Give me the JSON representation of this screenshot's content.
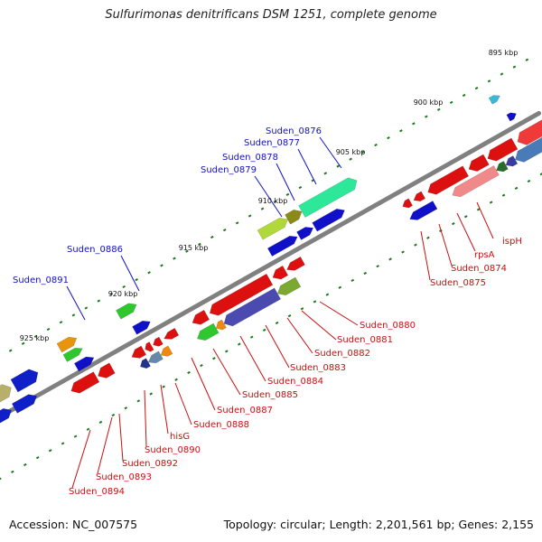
{
  "title": "Sulfurimonas denitrificans DSM 1251, complete genome",
  "footer": {
    "accession": "Accession: NC_007575",
    "summary": "Topology: circular; Length: 2,201,561 bp; Genes: 2,155"
  },
  "colors": {
    "backbone": "#808080",
    "forward_label": "#1010c8",
    "reverse_label": "#c81010",
    "leader_forward": "#1010c8",
    "leader_reverse": "#c81010",
    "tick": "#1a7a1a"
  },
  "scale_ticks": [
    "895 kbp",
    "900 kbp",
    "905 kbp",
    "910 kbp",
    "915 kbp",
    "920 kbp",
    "925 kbp"
  ],
  "forward_gene_labels": [
    "Suden_0876",
    "Suden_0877",
    "Suden_0878",
    "Suden_0879",
    "Suden_0886",
    "Suden_0891"
  ],
  "reverse_gene_labels": [
    "ispH",
    "rpsA",
    "Suden_0874",
    "Suden_0875",
    "Suden_0880",
    "Suden_0881",
    "Suden_0882",
    "Suden_0883",
    "Suden_0884",
    "Suden_0885",
    "Suden_0887",
    "Suden_0888",
    "hisG",
    "Suden_0890",
    "Suden_0892",
    "Suden_0893",
    "Suden_0894"
  ]
}
